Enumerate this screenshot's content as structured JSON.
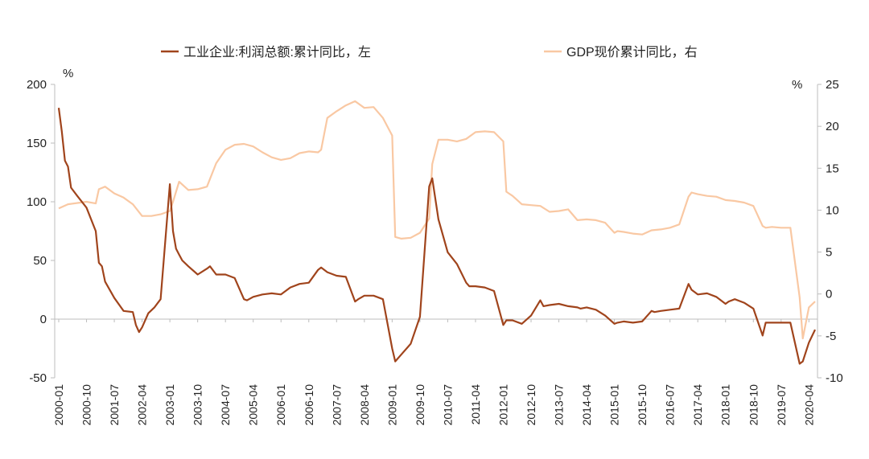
{
  "chart_data": {
    "type": "line",
    "title": "",
    "left_axis": {
      "unit_label": "%",
      "ylim": [
        -50,
        200
      ],
      "ticks": [
        -50,
        0,
        50,
        100,
        150,
        200
      ],
      "tick_labels": [
        "-50",
        "0",
        "50",
        "100",
        "150",
        "200"
      ]
    },
    "right_axis": {
      "unit_label": "%",
      "ylim": [
        -10,
        25
      ],
      "ticks": [
        -10,
        -5,
        0,
        5,
        10,
        15,
        20,
        25
      ],
      "tick_labels": [
        "-10",
        "-5",
        "0",
        "5",
        "10",
        "15",
        "20",
        "25"
      ]
    },
    "x_tick_labels": [
      "2000-01",
      "2000-10",
      "2001-07",
      "2002-04",
      "2003-01",
      "2003-10",
      "2004-07",
      "2005-04",
      "2006-01",
      "2006-10",
      "2007-07",
      "2008-04",
      "2009-01",
      "2009-10",
      "2010-07",
      "2011-04",
      "2012-01",
      "2012-10",
      "2013-07",
      "2014-04",
      "2015-01",
      "2015-10",
      "2016-07",
      "2017-04",
      "2018-01",
      "2018-10",
      "2019-07",
      "2020-04"
    ],
    "grid": false,
    "legend_position": "top",
    "series": [
      {
        "name": "工业企业:利润总额:累计同比，左",
        "axis": "left",
        "color": "#a0441c",
        "x": [
          "2000-01",
          "2000-02",
          "2000-03",
          "2000-04",
          "2000-05",
          "2000-07",
          "2000-10",
          "2001-01",
          "2001-02",
          "2001-03",
          "2001-04",
          "2001-07",
          "2001-10",
          "2002-01",
          "2002-02",
          "2002-03",
          "2002-04",
          "2002-06",
          "2002-08",
          "2002-10",
          "2003-01",
          "2003-02",
          "2003-03",
          "2003-04",
          "2003-05",
          "2003-07",
          "2003-10",
          "2004-01",
          "2004-02",
          "2004-04",
          "2004-07",
          "2004-10",
          "2005-01",
          "2005-02",
          "2005-04",
          "2005-07",
          "2005-10",
          "2006-01",
          "2006-04",
          "2006-07",
          "2006-10",
          "2007-01",
          "2007-02",
          "2007-04",
          "2007-07",
          "2007-10",
          "2008-01",
          "2008-02",
          "2008-04",
          "2008-07",
          "2008-10",
          "2009-01",
          "2009-02",
          "2009-04",
          "2009-07",
          "2009-10",
          "2010-01",
          "2010-02",
          "2010-04",
          "2010-07",
          "2010-10",
          "2011-01",
          "2011-02",
          "2011-04",
          "2011-07",
          "2011-10",
          "2012-01",
          "2012-02",
          "2012-04",
          "2012-07",
          "2012-10",
          "2013-01",
          "2013-02",
          "2013-04",
          "2013-07",
          "2013-10",
          "2014-01",
          "2014-02",
          "2014-04",
          "2014-07",
          "2014-10",
          "2015-01",
          "2015-02",
          "2015-04",
          "2015-07",
          "2015-10",
          "2016-01",
          "2016-02",
          "2016-04",
          "2016-07",
          "2016-10",
          "2017-01",
          "2017-02",
          "2017-04",
          "2017-07",
          "2017-10",
          "2018-01",
          "2018-02",
          "2018-04",
          "2018-07",
          "2018-10",
          "2019-01",
          "2019-02",
          "2019-04",
          "2019-07",
          "2019-10",
          "2020-01",
          "2020-02",
          "2020-04",
          "2020-06"
        ],
        "values": [
          180,
          160,
          135,
          130,
          112,
          105,
          95,
          75,
          48,
          45,
          32,
          18,
          7,
          6,
          -5,
          -11,
          -7,
          5,
          10,
          17,
          115,
          75,
          60,
          55,
          50,
          45,
          38,
          43,
          45,
          38,
          38,
          35,
          17,
          16,
          19,
          21,
          22,
          21,
          27,
          30,
          31,
          42,
          44,
          40,
          37,
          36,
          15,
          17,
          20,
          20,
          17,
          -25,
          -36,
          -30,
          -21,
          2,
          113,
          120,
          85,
          57,
          47,
          31,
          28,
          28,
          27,
          24,
          -5,
          -1,
          -1,
          -4,
          3,
          16,
          11,
          12,
          13,
          11,
          10,
          9,
          10,
          8,
          3,
          -4,
          -3,
          -2,
          -3,
          -2,
          7,
          6,
          7,
          8,
          9,
          30,
          25,
          21,
          22,
          19,
          13,
          15,
          17,
          14,
          9,
          -14,
          -3,
          -3,
          -3,
          -3,
          -38,
          -36,
          -20,
          -9
        ]
      },
      {
        "name": "GDP现价累计同比，右",
        "axis": "right",
        "color": "#f9c8a3",
        "x": [
          "2000-01",
          "2000-04",
          "2000-10",
          "2001-01",
          "2001-02",
          "2001-04",
          "2001-07",
          "2001-10",
          "2002-01",
          "2002-04",
          "2002-07",
          "2002-10",
          "2003-01",
          "2003-02",
          "2003-04",
          "2003-07",
          "2003-10",
          "2004-01",
          "2004-04",
          "2004-07",
          "2004-10",
          "2005-01",
          "2005-04",
          "2005-07",
          "2005-10",
          "2006-01",
          "2006-04",
          "2006-07",
          "2006-10",
          "2007-01",
          "2007-02",
          "2007-04",
          "2007-07",
          "2007-10",
          "2008-01",
          "2008-04",
          "2008-07",
          "2008-10",
          "2009-01",
          "2009-02",
          "2009-04",
          "2009-07",
          "2009-10",
          "2010-01",
          "2010-02",
          "2010-04",
          "2010-07",
          "2010-10",
          "2011-01",
          "2011-04",
          "2011-07",
          "2011-10",
          "2012-01",
          "2012-02",
          "2012-04",
          "2012-07",
          "2012-10",
          "2013-01",
          "2013-04",
          "2013-07",
          "2013-10",
          "2014-01",
          "2014-04",
          "2014-07",
          "2014-10",
          "2015-01",
          "2015-02",
          "2015-04",
          "2015-07",
          "2015-10",
          "2016-01",
          "2016-04",
          "2016-07",
          "2016-10",
          "2017-01",
          "2017-02",
          "2017-04",
          "2017-07",
          "2017-10",
          "2018-01",
          "2018-04",
          "2018-07",
          "2018-10",
          "2019-01",
          "2019-02",
          "2019-04",
          "2019-07",
          "2019-10",
          "2020-01",
          "2020-02",
          "2020-04",
          "2020-06"
        ],
        "values": [
          10.2,
          10.7,
          11.0,
          10.8,
          12.5,
          12.8,
          12.0,
          11.5,
          10.7,
          9.3,
          9.3,
          9.5,
          9.9,
          11.0,
          13.4,
          12.4,
          12.5,
          12.8,
          15.6,
          17.2,
          17.8,
          17.9,
          17.6,
          16.9,
          16.3,
          16.0,
          16.2,
          16.8,
          17.0,
          16.9,
          17.2,
          21.0,
          21.8,
          22.5,
          23.0,
          22.2,
          22.3,
          21.0,
          18.9,
          6.8,
          6.6,
          6.7,
          7.3,
          9.0,
          15.5,
          18.4,
          18.4,
          18.2,
          18.5,
          19.3,
          19.4,
          19.3,
          18.2,
          12.2,
          11.7,
          10.7,
          10.6,
          10.5,
          9.8,
          9.9,
          10.1,
          8.8,
          8.9,
          8.8,
          8.5,
          7.3,
          7.5,
          7.4,
          7.2,
          7.1,
          7.6,
          7.7,
          7.9,
          8.3,
          11.6,
          12.1,
          11.9,
          11.7,
          11.6,
          11.2,
          11.1,
          10.9,
          10.5,
          8.1,
          7.9,
          8.0,
          7.9,
          7.9,
          -0.4,
          -5.3,
          -1.6,
          -0.9
        ]
      }
    ]
  }
}
